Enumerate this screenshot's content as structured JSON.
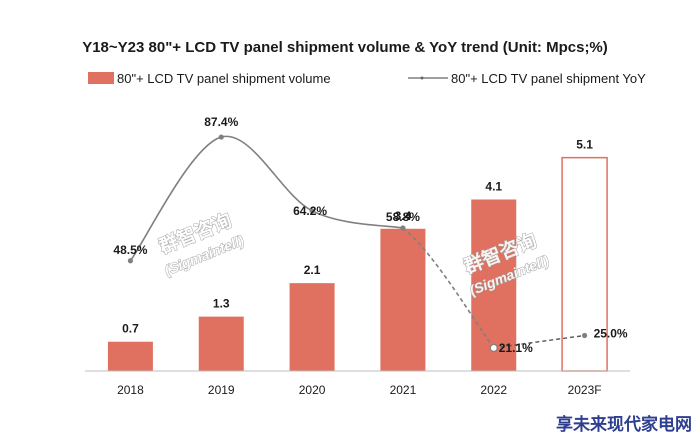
{
  "chart_data": {
    "type": "bar",
    "title": "Y18~Y23 80\"+ LCD TV panel shipment volume & YoY trend (Unit: Mpcs;%)",
    "categories": [
      "2018",
      "2019",
      "2020",
      "2021",
      "2022",
      "2023F"
    ],
    "series": [
      {
        "name": "80\"+ LCD TV panel shipment volume",
        "type": "bar",
        "values": [
          0.7,
          1.3,
          2.1,
          3.4,
          4.1,
          5.1
        ],
        "labels": [
          "0.7",
          "1.3",
          "2.1",
          "3.4",
          "4.1",
          "5.1"
        ],
        "color": "#e07060",
        "forecast_from_index": 5
      },
      {
        "name": "80\"+ LCD TV panel shipment YoY",
        "type": "line",
        "values": [
          48.5,
          87.4,
          64.2,
          58.8,
          21.1,
          25.0
        ],
        "labels": [
          "48.5%",
          "87.4%",
          "64.2%",
          "58.8%",
          "21.1%",
          "25.0%"
        ],
        "color": "#808080",
        "forecast_from_index": 4
      }
    ],
    "ylim_bar": [
      0,
      6
    ],
    "ylim_line": [
      0,
      100
    ],
    "legend_position": "top-left",
    "grid": false
  },
  "watermark": {
    "text": "群智咨询",
    "subtext": "(Sigmaintell)"
  },
  "footer": {
    "text": "享未来现代家电网"
  }
}
